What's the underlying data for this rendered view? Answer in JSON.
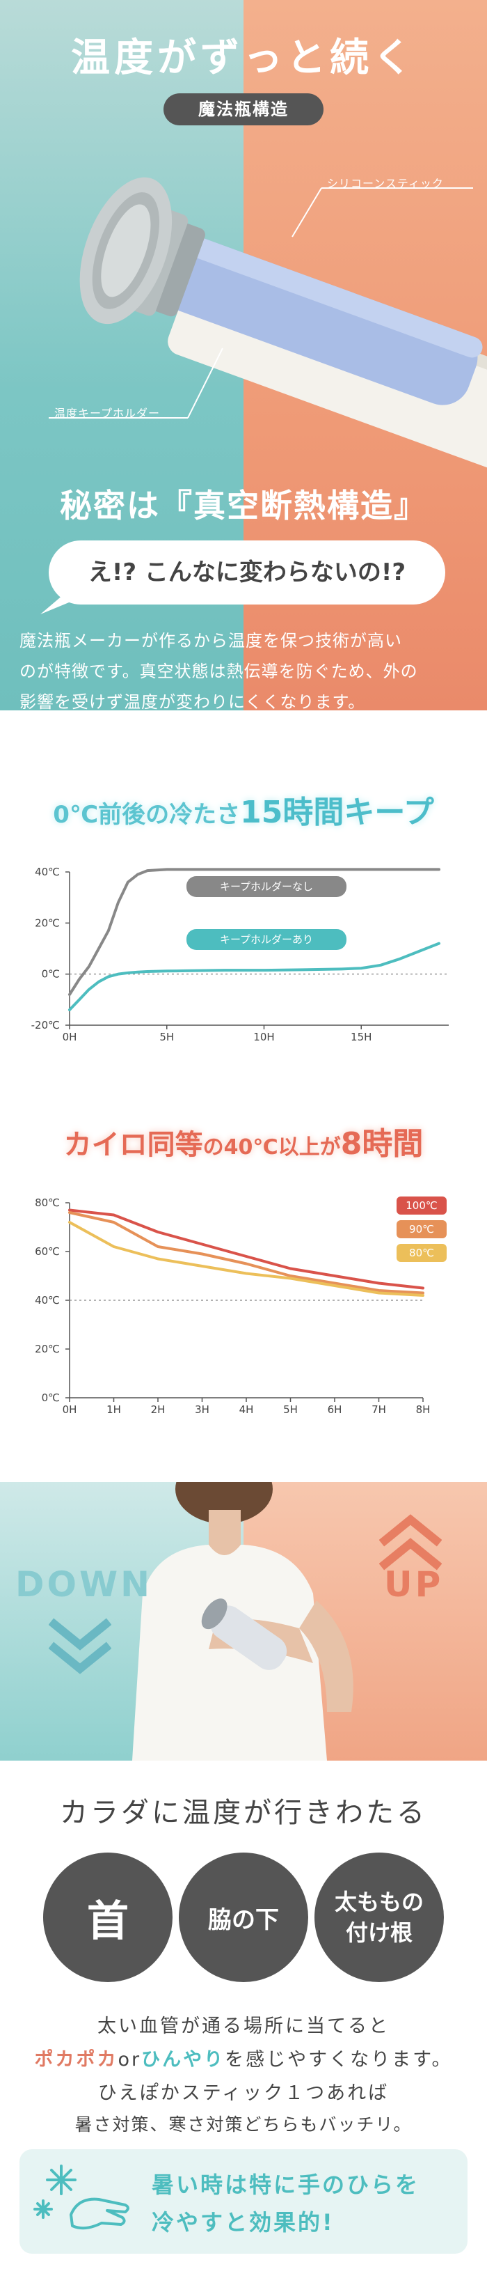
{
  "hero": {
    "title": "温度がずっと続く",
    "badge": "魔法瓶構造",
    "callout_stick": "シリコーンスティック",
    "callout_holder": "温度キープホルダー"
  },
  "secret": {
    "title": "秘密は『真空断熱構造』",
    "bubble": "え!? こんなに変わらないの!?",
    "desc_lines": [
      "魔法瓶メーカーが作るから温度を保つ技術が高い",
      "のが特徴です。真空状態は熱伝導を防ぐため、外の",
      "影響を受けず温度が変わりにくくなります。"
    ]
  },
  "cold": {
    "title_a": "0℃前後の冷たさ",
    "title_b": "15時間キープ",
    "title_color": "#5cc4d0"
  },
  "warm": {
    "title_a": "カイロ同等",
    "title_b": "の40℃以上が",
    "title_c": "8時間",
    "title_color": "#e56a55"
  },
  "chart_data": [
    {
      "type": "line",
      "x": [
        0,
        0.5,
        1,
        1.5,
        2,
        2.5,
        3,
        3.5,
        4,
        5,
        6,
        8,
        10,
        12,
        14,
        15,
        16,
        17,
        18,
        19
      ],
      "xticks": [
        "0H",
        "5H",
        "10H",
        "15H"
      ],
      "xtick_values": [
        0,
        5,
        10,
        15
      ],
      "yticks": [
        "40℃",
        "20℃",
        "0℃",
        "-20℃"
      ],
      "ytick_values": [
        40,
        20,
        0,
        -20
      ],
      "ylim": [
        -20,
        40
      ],
      "xlim": [
        0,
        19.5
      ],
      "series": [
        {
          "name": "キープホルダーなし",
          "color": "#888888",
          "values": [
            -8,
            -2,
            3,
            10,
            17,
            28,
            36,
            39,
            40.5,
            41,
            41,
            41,
            41,
            41,
            41,
            41,
            41,
            41,
            41,
            41
          ]
        },
        {
          "name": "キープホルダーあり",
          "color": "#4dbdbf",
          "values": [
            -14,
            -10,
            -6,
            -3,
            -1,
            0,
            0.5,
            0.8,
            1,
            1.2,
            1.3,
            1.5,
            1.5,
            1.7,
            2,
            2.3,
            3.5,
            6,
            9,
            12
          ]
        }
      ],
      "reference_line": 0
    },
    {
      "type": "line",
      "x": [
        0,
        1,
        2,
        3,
        4,
        5,
        6,
        7,
        8
      ],
      "xticks": [
        "0H",
        "1H",
        "2H",
        "3H",
        "4H",
        "5H",
        "6H",
        "7H",
        "8H"
      ],
      "xtick_values": [
        0,
        1,
        2,
        3,
        4,
        5,
        6,
        7,
        8
      ],
      "yticks": [
        "80℃",
        "60℃",
        "40℃",
        "20℃",
        "0℃"
      ],
      "ytick_values": [
        80,
        60,
        40,
        20,
        0
      ],
      "ylim": [
        0,
        80
      ],
      "xlim": [
        0,
        8
      ],
      "series": [
        {
          "name": "100℃",
          "color": "#d9534a",
          "values": [
            77,
            75,
            68,
            63,
            58,
            53,
            50,
            47,
            45
          ]
        },
        {
          "name": "90℃",
          "color": "#e69158",
          "values": [
            76,
            72,
            62,
            59,
            55,
            50,
            47,
            44,
            43
          ]
        },
        {
          "name": "80℃",
          "color": "#ecbf5a",
          "values": [
            72,
            62,
            57,
            54,
            51,
            49,
            46,
            43,
            42
          ]
        }
      ],
      "reference_line": 40
    }
  ],
  "photo": {
    "down_label": "DOWN",
    "up_label": "UP"
  },
  "body": {
    "title": "カラダに温度が行きわたる",
    "circle_neck": "首",
    "circle_armpit": "脇の下",
    "circle_thigh_1": "太ももの",
    "circle_thigh_2": "付け根",
    "line1": "太い血管が通る場所に当てると",
    "line2_warm": "ポカポカ",
    "line2_or": "or",
    "line2_cool": "ひんやり",
    "line2_rest": "を感じやすくなります。",
    "line3": "ひえぽかスティック１つあれば",
    "line4": "暑さ対策、寒さ対策どちらもバッチリ。",
    "warm_color": "#e07a63",
    "cool_color": "#4dbdbf",
    "tip_line1": "暑い時は特に手のひらを",
    "tip_line2": "冷やすと効果的!"
  }
}
